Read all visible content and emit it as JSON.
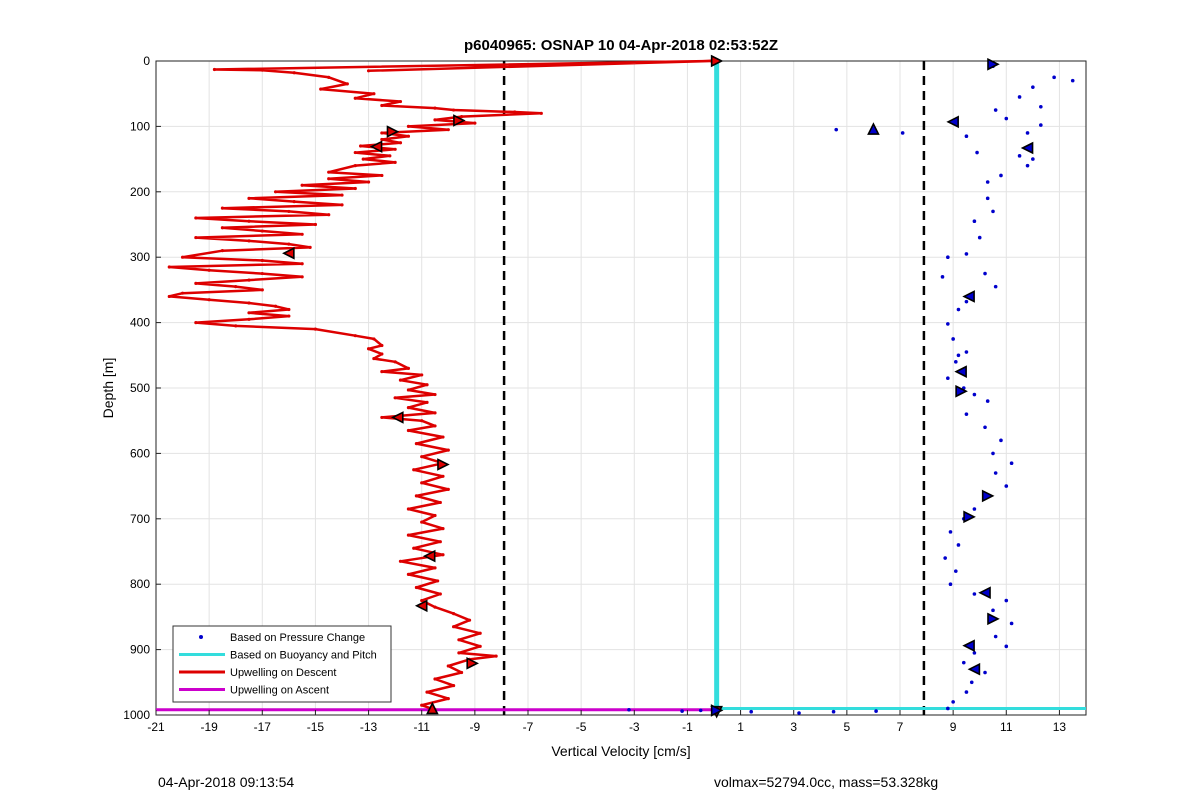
{
  "chart_data": {
    "type": "line",
    "title": "p6040965: OSNAP 10 04-Apr-2018 02:53:52Z",
    "xlabel": "Vertical Velocity [cm/s]",
    "ylabel": "Depth [m]",
    "xlim": [
      -21,
      14
    ],
    "ylim": [
      0,
      1000
    ],
    "y_reversed": true,
    "grid": true,
    "x_ticks": [
      -21,
      -19,
      -17,
      -15,
      -13,
      -11,
      -9,
      -7,
      -5,
      -3,
      -1,
      1,
      3,
      5,
      7,
      9,
      11,
      13
    ],
    "y_ticks": [
      0,
      100,
      200,
      300,
      400,
      500,
      600,
      700,
      800,
      900,
      1000
    ],
    "legend_position": "bottom-left",
    "legend": [
      "Based on Pressure Change",
      "Based on Buoyancy and Pitch",
      "Upwelling on Descent",
      "Upwelling on Ascent"
    ],
    "colors": {
      "pressure": "#0000cc",
      "buoyancy": "#33dddd",
      "descent": "#dd0000",
      "ascent": "#cc00cc",
      "threshold": "#000000"
    },
    "thresholds": [
      -7.9,
      7.9
    ],
    "buoyancy_line": {
      "x": 0.1,
      "y_from": 0,
      "y_to": 1000,
      "bottom_y": 990,
      "bottom_x_from": 0.1,
      "bottom_x_to": 14
    },
    "ascent_line": {
      "y": 992,
      "x_from": -21,
      "x_to": 0.1
    },
    "descent_profile": [
      [
        -13,
        15
      ],
      [
        -0.1,
        0
      ],
      [
        -18.8,
        13
      ],
      [
        -17,
        14
      ],
      [
        -15.8,
        18
      ],
      [
        -14.5,
        25
      ],
      [
        -13.8,
        35
      ],
      [
        -14.8,
        43
      ],
      [
        -12.8,
        50
      ],
      [
        -13.5,
        57
      ],
      [
        -11.8,
        62
      ],
      [
        -12.5,
        68
      ],
      [
        -10.5,
        72
      ],
      [
        -9.8,
        75
      ],
      [
        -7.5,
        78
      ],
      [
        -6.5,
        80
      ],
      [
        -9.5,
        85
      ],
      [
        -10.5,
        90
      ],
      [
        -9,
        95
      ],
      [
        -11.5,
        100
      ],
      [
        -10,
        105
      ],
      [
        -12.5,
        110
      ],
      [
        -11.5,
        115
      ],
      [
        -12.5,
        120
      ],
      [
        -11.8,
        125
      ],
      [
        -13.3,
        130
      ],
      [
        -12,
        135
      ],
      [
        -13.5,
        140
      ],
      [
        -12.2,
        145
      ],
      [
        -13.2,
        150
      ],
      [
        -12,
        155
      ],
      [
        -13.5,
        160
      ],
      [
        -14.5,
        170
      ],
      [
        -12.5,
        175
      ],
      [
        -14.5,
        180
      ],
      [
        -13,
        185
      ],
      [
        -15.5,
        190
      ],
      [
        -13.5,
        195
      ],
      [
        -16.5,
        200
      ],
      [
        -14,
        205
      ],
      [
        -17.5,
        210
      ],
      [
        -15.8,
        215
      ],
      [
        -14,
        220
      ],
      [
        -18.5,
        225
      ],
      [
        -16,
        230
      ],
      [
        -14.5,
        235
      ],
      [
        -19.5,
        240
      ],
      [
        -17.5,
        245
      ],
      [
        -15,
        250
      ],
      [
        -18.5,
        255
      ],
      [
        -17,
        260
      ],
      [
        -15.5,
        265
      ],
      [
        -19.5,
        270
      ],
      [
        -17.5,
        275
      ],
      [
        -16,
        280
      ],
      [
        -15.2,
        285
      ],
      [
        -18.5,
        290
      ],
      [
        -20,
        300
      ],
      [
        -17,
        305
      ],
      [
        -15.5,
        310
      ],
      [
        -20.5,
        315
      ],
      [
        -19,
        320
      ],
      [
        -17,
        325
      ],
      [
        -15.5,
        330
      ],
      [
        -17.5,
        335
      ],
      [
        -19.5,
        340
      ],
      [
        -18,
        345
      ],
      [
        -17,
        350
      ],
      [
        -20,
        355
      ],
      [
        -20.5,
        360
      ],
      [
        -19,
        365
      ],
      [
        -17.5,
        370
      ],
      [
        -16.5,
        375
      ],
      [
        -16,
        380
      ],
      [
        -17.5,
        385
      ],
      [
        -16,
        390
      ],
      [
        -17.5,
        395
      ],
      [
        -19.5,
        400
      ],
      [
        -18,
        405
      ],
      [
        -15,
        410
      ],
      [
        -13.5,
        420
      ],
      [
        -12.8,
        425
      ],
      [
        -12.5,
        435
      ],
      [
        -13,
        440
      ],
      [
        -12.5,
        448
      ],
      [
        -12.8,
        455
      ],
      [
        -12,
        460
      ],
      [
        -11.5,
        470
      ],
      [
        -12.5,
        475
      ],
      [
        -11,
        480
      ],
      [
        -11.8,
        488
      ],
      [
        -10.8,
        495
      ],
      [
        -11.5,
        503
      ],
      [
        -10.5,
        510
      ],
      [
        -12,
        515
      ],
      [
        -10.8,
        522
      ],
      [
        -11.5,
        530
      ],
      [
        -10.5,
        538
      ],
      [
        -12.5,
        545
      ],
      [
        -11,
        550
      ],
      [
        -10.5,
        558
      ],
      [
        -11.5,
        565
      ],
      [
        -10.2,
        575
      ],
      [
        -11.2,
        585
      ],
      [
        -10,
        595
      ],
      [
        -11,
        605
      ],
      [
        -10.2,
        615
      ],
      [
        -11.3,
        625
      ],
      [
        -10.2,
        635
      ],
      [
        -11,
        645
      ],
      [
        -10,
        655
      ],
      [
        -11.2,
        665
      ],
      [
        -10.3,
        675
      ],
      [
        -11.5,
        685
      ],
      [
        -10.5,
        695
      ],
      [
        -11,
        705
      ],
      [
        -10.2,
        715
      ],
      [
        -11.5,
        725
      ],
      [
        -10.3,
        735
      ],
      [
        -11.3,
        745
      ],
      [
        -10.2,
        755
      ],
      [
        -11.8,
        765
      ],
      [
        -10.5,
        775
      ],
      [
        -11.5,
        785
      ],
      [
        -10.4,
        795
      ],
      [
        -11.2,
        805
      ],
      [
        -10.3,
        815
      ],
      [
        -11,
        825
      ],
      [
        -10.5,
        835
      ],
      [
        -9.8,
        845
      ],
      [
        -9.2,
        855
      ],
      [
        -9.8,
        865
      ],
      [
        -8.8,
        875
      ],
      [
        -9.6,
        885
      ],
      [
        -8.8,
        895
      ],
      [
        -9.6,
        905
      ],
      [
        -8.2,
        910
      ],
      [
        -9.2,
        915
      ],
      [
        -10,
        925
      ],
      [
        -9.5,
        935
      ],
      [
        -10.5,
        945
      ],
      [
        -9.8,
        955
      ],
      [
        -10.8,
        965
      ],
      [
        -10,
        975
      ],
      [
        -11,
        985
      ],
      [
        -10.5,
        992
      ]
    ],
    "pressure_points": [
      [
        10.5,
        8
      ],
      [
        12.8,
        25
      ],
      [
        12,
        40
      ],
      [
        11.5,
        55
      ],
      [
        12.3,
        70
      ],
      [
        11,
        88
      ],
      [
        11.8,
        110
      ],
      [
        11.5,
        145
      ],
      [
        12,
        150
      ],
      [
        10.8,
        175
      ],
      [
        10.3,
        185
      ],
      [
        10.3,
        210
      ],
      [
        10.5,
        230
      ],
      [
        9.8,
        245
      ],
      [
        10,
        270
      ],
      [
        9.5,
        295
      ],
      [
        8.8,
        300
      ],
      [
        10.2,
        325
      ],
      [
        10.6,
        345
      ],
      [
        9.5,
        368
      ],
      [
        9.2,
        380
      ],
      [
        8.8,
        402
      ],
      [
        9,
        425
      ],
      [
        9.5,
        445
      ],
      [
        9.1,
        460
      ],
      [
        8.8,
        485
      ],
      [
        9.4,
        500
      ],
      [
        9.8,
        510
      ],
      [
        10.3,
        520
      ],
      [
        9.5,
        540
      ],
      [
        10.2,
        560
      ],
      [
        10.8,
        580
      ],
      [
        10.5,
        600
      ],
      [
        11.2,
        615
      ],
      [
        10.6,
        630
      ],
      [
        11,
        650
      ],
      [
        10.2,
        665
      ],
      [
        9.8,
        685
      ],
      [
        9.4,
        700
      ],
      [
        8.9,
        720
      ],
      [
        9.2,
        740
      ],
      [
        8.7,
        760
      ],
      [
        9.1,
        780
      ],
      [
        8.9,
        800
      ],
      [
        9.8,
        815
      ],
      [
        11,
        825
      ],
      [
        10.5,
        840
      ],
      [
        11.2,
        860
      ],
      [
        10.6,
        880
      ],
      [
        11,
        895
      ],
      [
        9.8,
        905
      ],
      [
        9.4,
        920
      ],
      [
        10.2,
        935
      ],
      [
        9.7,
        950
      ],
      [
        9.5,
        965
      ],
      [
        9,
        980
      ],
      [
        8.8,
        990
      ],
      [
        12.3,
        98
      ],
      [
        11.8,
        160
      ],
      [
        13.5,
        30
      ],
      [
        10.6,
        75
      ],
      [
        4.6,
        105
      ],
      [
        7.1,
        110
      ],
      [
        9.5,
        115
      ],
      [
        9.9,
        140
      ],
      [
        8.6,
        330
      ],
      [
        9.2,
        450
      ],
      [
        -3.2,
        992
      ],
      [
        -1.2,
        994
      ],
      [
        1.4,
        995
      ],
      [
        3.2,
        997
      ],
      [
        4.5,
        995
      ],
      [
        6.1,
        994
      ],
      [
        -0.5,
        993
      ]
    ],
    "descent_triangles": [
      [
        0.1,
        0,
        "right"
      ],
      [
        -9.6,
        91,
        "right"
      ],
      [
        -12.1,
        108,
        "right"
      ],
      [
        -12.7,
        131,
        "left"
      ],
      [
        -16,
        294,
        "left"
      ],
      [
        -11.9,
        545,
        "left"
      ],
      [
        -10.2,
        617,
        "right"
      ],
      [
        -10.7,
        757,
        "left"
      ],
      [
        -11,
        833,
        "left"
      ],
      [
        -9.1,
        921,
        "right"
      ],
      [
        -10.6,
        990,
        "up"
      ],
      [
        0.1,
        995,
        "down"
      ]
    ],
    "pressure_triangles": [
      [
        10.5,
        5,
        "right"
      ],
      [
        9,
        93,
        "left"
      ],
      [
        6,
        104,
        "up"
      ],
      [
        11.8,
        133,
        "left"
      ],
      [
        9.6,
        360,
        "left"
      ],
      [
        9.3,
        475,
        "left"
      ],
      [
        9.3,
        505,
        "right"
      ],
      [
        10.3,
        665,
        "right"
      ],
      [
        9.6,
        697,
        "right"
      ],
      [
        10.2,
        813,
        "left"
      ],
      [
        10.5,
        853,
        "right"
      ],
      [
        9.6,
        894,
        "left"
      ],
      [
        9.8,
        930,
        "left"
      ],
      [
        0.1,
        993,
        "right"
      ]
    ],
    "footer_left": "04-Apr-2018 09:13:54",
    "footer_right": "volmax=52794.0cc, mass=53.328kg"
  }
}
